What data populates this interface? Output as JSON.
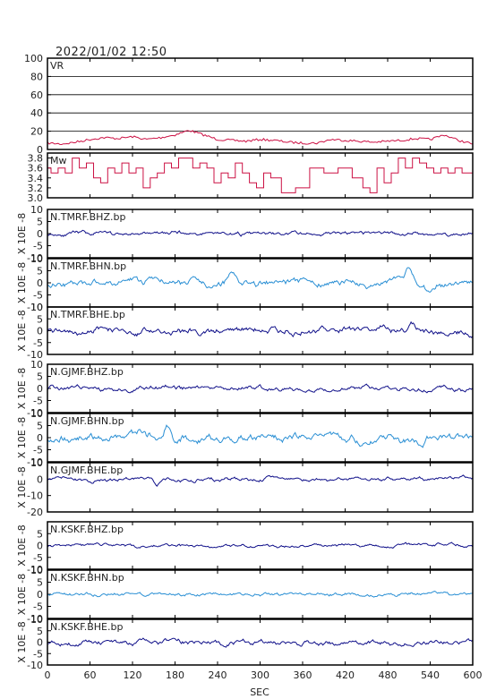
{
  "timestamp": "2022/01/02  12:50",
  "xlabel": "SEC",
  "ylabel_unit": "X 10E -8",
  "x_ticks": [
    0,
    60,
    120,
    180,
    240,
    300,
    360,
    420,
    480,
    540,
    600
  ],
  "xlim": [
    0,
    600
  ],
  "colors": {
    "vr": "#cc1144",
    "mw": "#cc1144",
    "dark": "#11118a",
    "light": "#2a8fd4",
    "frame": "#000000"
  },
  "chart_data": [
    {
      "type": "line",
      "label": "VR",
      "ylim": [
        0,
        100
      ],
      "yticks": [
        0,
        20,
        40,
        60,
        80,
        100
      ],
      "grid": true,
      "color": "vr",
      "x": [
        0,
        20,
        40,
        60,
        80,
        100,
        120,
        140,
        160,
        180,
        200,
        220,
        240,
        260,
        280,
        300,
        320,
        340,
        360,
        380,
        400,
        420,
        440,
        460,
        480,
        500,
        520,
        540,
        560,
        580,
        600
      ],
      "y": [
        7,
        6,
        8,
        11,
        13,
        12,
        14,
        11,
        13,
        16,
        21,
        16,
        11,
        10,
        9,
        11,
        10,
        8,
        7,
        7,
        11,
        10,
        9,
        8,
        9,
        10,
        12,
        11,
        16,
        10,
        6
      ]
    },
    {
      "type": "line",
      "label": "Mw",
      "ylim": [
        3.0,
        3.9
      ],
      "yticks": [
        3.0,
        3.2,
        3.4,
        3.6,
        3.8
      ],
      "grid": false,
      "color": "mw",
      "x": [
        0,
        10,
        20,
        30,
        40,
        50,
        60,
        70,
        80,
        90,
        100,
        110,
        120,
        130,
        140,
        150,
        160,
        170,
        180,
        190,
        200,
        210,
        220,
        230,
        240,
        250,
        260,
        270,
        280,
        290,
        300,
        310,
        320,
        340,
        360,
        380,
        400,
        420,
        440,
        450,
        460,
        470,
        480,
        490,
        500,
        510,
        520,
        530,
        540,
        550,
        560,
        570,
        580,
        590,
        600
      ],
      "y": [
        3.6,
        3.5,
        3.6,
        3.5,
        3.8,
        3.6,
        3.7,
        3.4,
        3.3,
        3.6,
        3.5,
        3.7,
        3.5,
        3.6,
        3.2,
        3.4,
        3.5,
        3.7,
        3.6,
        3.8,
        3.8,
        3.6,
        3.7,
        3.6,
        3.3,
        3.5,
        3.4,
        3.7,
        3.5,
        3.3,
        3.2,
        3.5,
        3.4,
        3.1,
        3.2,
        3.6,
        3.5,
        3.6,
        3.4,
        3.2,
        3.1,
        3.6,
        3.3,
        3.5,
        3.8,
        3.6,
        3.8,
        3.7,
        3.6,
        3.5,
        3.6,
        3.5,
        3.6,
        3.5,
        3.5
      ]
    },
    {
      "type": "line",
      "label": "N.TMRF.BHZ.bp",
      "ylim": [
        -10,
        10
      ],
      "yticks": [
        -10,
        -5,
        0,
        5,
        10
      ],
      "color": "dark",
      "seed": 11,
      "noise": 0.6,
      "events": [
        [
          520,
          0.5
        ]
      ]
    },
    {
      "type": "line",
      "label": "N.TMRF.BHN.bp",
      "ylim": [
        -10,
        10
      ],
      "yticks": [
        -10,
        -5,
        0,
        5,
        10
      ],
      "color": "light",
      "seed": 23,
      "noise": 1.0,
      "events": [
        [
          260,
          3
        ],
        [
          450,
          -3
        ],
        [
          510,
          5
        ],
        [
          540,
          -4
        ]
      ]
    },
    {
      "type": "line",
      "label": "N.TMRF.BHE.bp",
      "ylim": [
        -10,
        10
      ],
      "yticks": [
        -10,
        -5,
        0,
        5,
        10
      ],
      "color": "dark",
      "seed": 37,
      "noise": 1.0,
      "events": [
        [
          470,
          2
        ],
        [
          515,
          3
        ]
      ]
    },
    {
      "type": "line",
      "label": "N.GJMF.BHZ.bp",
      "ylim": [
        -10,
        10
      ],
      "yticks": [
        -10,
        -5,
        0,
        5,
        10
      ],
      "color": "dark",
      "seed": 41,
      "noise": 0.7,
      "events": []
    },
    {
      "type": "line",
      "label": "N.GJMF.BHN.bp",
      "ylim": [
        -10,
        10
      ],
      "yticks": [
        -10,
        -5,
        0,
        5,
        10
      ],
      "color": "light",
      "seed": 53,
      "noise": 1.2,
      "events": [
        [
          170,
          4
        ],
        [
          180,
          -4
        ]
      ]
    },
    {
      "type": "line",
      "label": "N.GJMF.BHE.bp",
      "ylim": [
        -20,
        10
      ],
      "yticks": [
        -20,
        -10,
        0,
        10
      ],
      "color": "dark",
      "seed": 67,
      "noise": 0.9,
      "events": [
        [
          155,
          -3
        ],
        [
          400,
          -2
        ]
      ]
    },
    {
      "type": "line",
      "label": "N.KSKF.BHZ.bp",
      "ylim": [
        -10,
        10
      ],
      "yticks": [
        -10,
        -5,
        0,
        5
      ],
      "color": "dark",
      "seed": 71,
      "noise": 0.5,
      "events": []
    },
    {
      "type": "line",
      "label": "N.KSKF.BHN.bp",
      "ylim": [
        -10,
        10
      ],
      "yticks": [
        -10,
        -5,
        0,
        5,
        10
      ],
      "color": "light",
      "seed": 83,
      "noise": 0.5,
      "events": []
    },
    {
      "type": "line",
      "label": "N.KSKF.BHE.bp",
      "ylim": [
        -10,
        10
      ],
      "yticks": [
        -10,
        -5,
        0,
        5,
        10
      ],
      "color": "dark",
      "seed": 97,
      "noise": 0.8,
      "events": []
    }
  ]
}
